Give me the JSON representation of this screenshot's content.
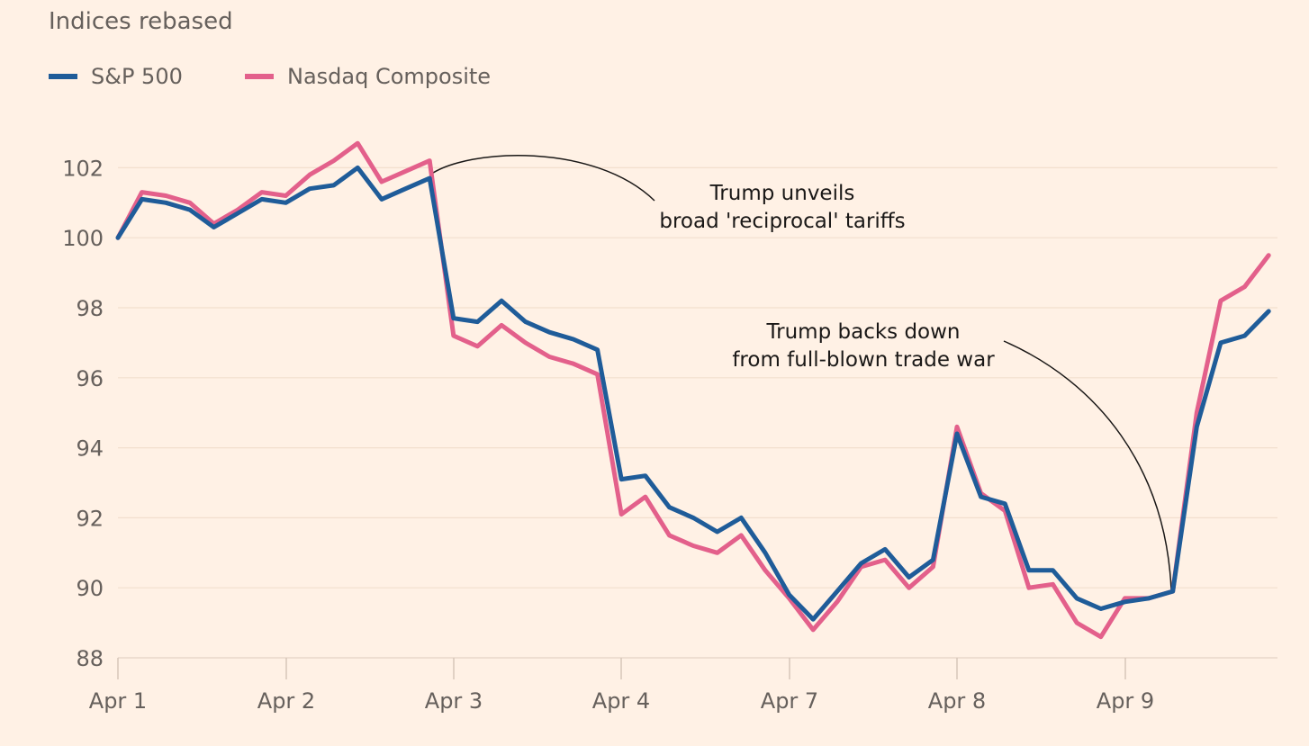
{
  "chart_data": {
    "type": "line",
    "subtitle": "Indices rebased",
    "ylim": [
      88,
      103
    ],
    "y_ticks": [
      88,
      90,
      92,
      94,
      96,
      98,
      100,
      102
    ],
    "x_ticks": [
      "Apr 1",
      "Apr 2",
      "Apr 3",
      "Apr 4",
      "Apr 7",
      "Apr 8",
      "Apr 9"
    ],
    "grid": true,
    "legend_position": "top-left",
    "series": [
      {
        "name": "S&P 500",
        "color": "#1f5c99",
        "values": [
          100.0,
          101.1,
          101.0,
          100.8,
          100.3,
          100.7,
          101.1,
          101.0,
          101.4,
          101.5,
          102.0,
          101.1,
          101.4,
          101.7,
          97.7,
          97.6,
          98.2,
          97.6,
          97.3,
          97.1,
          96.8,
          93.1,
          93.2,
          92.3,
          92.0,
          91.6,
          92.0,
          91.0,
          89.8,
          89.1,
          89.9,
          90.7,
          91.1,
          90.3,
          90.8,
          94.4,
          92.6,
          92.4,
          90.5,
          90.5,
          89.7,
          89.4,
          89.6,
          89.7,
          89.9,
          94.6,
          97.0,
          97.2,
          97.9
        ]
      },
      {
        "name": "Nasdaq Composite",
        "color": "#e3608b",
        "values": [
          100.0,
          101.3,
          101.2,
          101.0,
          100.4,
          100.8,
          101.3,
          101.2,
          101.8,
          102.2,
          102.7,
          101.6,
          101.9,
          102.2,
          97.2,
          96.9,
          97.5,
          97.0,
          96.6,
          96.4,
          96.1,
          92.1,
          92.6,
          91.5,
          91.2,
          91.0,
          91.5,
          90.5,
          89.7,
          88.8,
          89.6,
          90.6,
          90.8,
          90.0,
          90.6,
          94.6,
          92.7,
          92.2,
          90.0,
          90.1,
          89.0,
          88.6,
          89.7,
          89.7,
          89.9,
          95.0,
          98.2,
          98.6,
          99.5
        ]
      }
    ],
    "annotations": [
      {
        "lines": [
          "Trump unveils",
          "broad 'reciprocal' tariffs"
        ]
      },
      {
        "lines": [
          "Trump backs down",
          "from full-blown trade war"
        ]
      }
    ]
  }
}
